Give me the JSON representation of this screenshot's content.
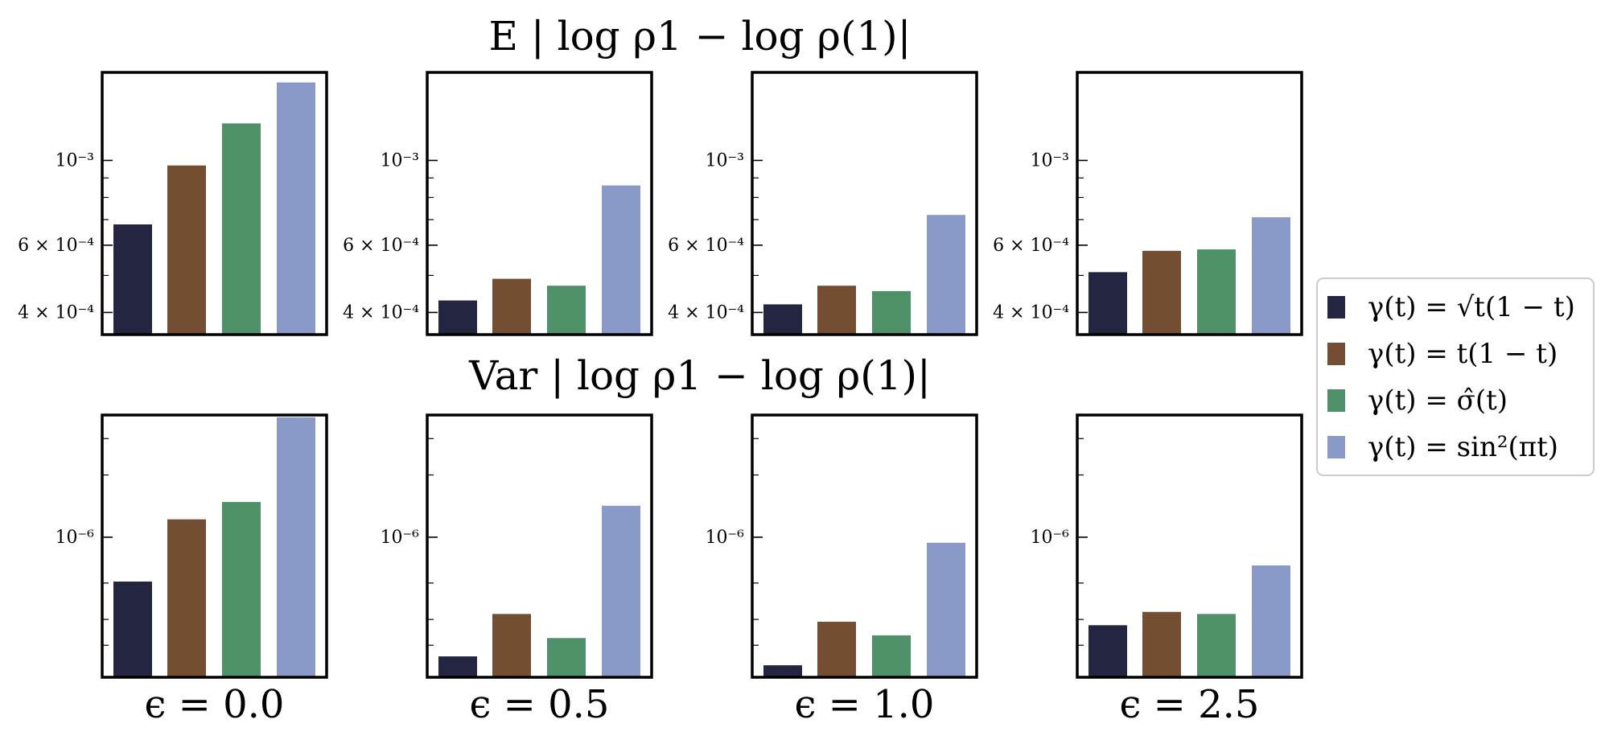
{
  "chart_data": {
    "type": "bar",
    "layout": "2x4 grid of panels, shared legend at right",
    "y_scale": "log",
    "legend_placement": "right",
    "series": [
      {
        "name": "γ(t) = √t(1 − t)",
        "color": "#232541"
      },
      {
        "name": "γ(t) = t(1 − t)",
        "color": "#744e33"
      },
      {
        "name": "γ(t) = σ̂(t)",
        "color": "#4e9168"
      },
      {
        "name": "γ(t) = sin²(πt)",
        "color": "#899ac8"
      }
    ],
    "columns": [
      {
        "label": "ϵ = 0.0"
      },
      {
        "label": "ϵ = 0.5"
      },
      {
        "label": "ϵ = 1.0"
      },
      {
        "label": "ϵ = 2.5"
      }
    ],
    "rows": [
      {
        "title": "E | log ρ1 − log ρ(1)|",
        "ylim": [
          0.00035,
          0.0017
        ],
        "tick_labels": [
          "10⁻³",
          "6 × 10⁻⁴",
          "4 × 10⁻⁴"
        ],
        "major_ticks": [
          0.001,
          0.0006,
          0.0004
        ],
        "minor_ticks": [
          0.0005,
          0.0007,
          0.0008,
          0.0009
        ],
        "panels": [
          {
            "values": [
              0.00068,
              0.00097,
              0.00125,
              0.0016
            ]
          },
          {
            "values": [
              0.00043,
              0.00049,
              0.00047,
              0.00086
            ]
          },
          {
            "values": [
              0.00042,
              0.00047,
              0.000455,
              0.00072
            ]
          },
          {
            "values": [
              0.00051,
              0.00058,
              0.000585,
              0.00071
            ]
          }
        ]
      },
      {
        "title": "Var | log ρ1 − log ρ(1)|",
        "ylim": [
          2.1e-07,
          3.9e-06
        ],
        "tick_labels": [
          "10⁻⁶"
        ],
        "major_ticks": [
          1e-06
        ],
        "minor_ticks": [
          3e-07,
          4e-07,
          6e-07,
          2e-06,
          3e-06
        ],
        "panels": [
          {
            "values": [
              6.1e-07,
              1.22e-06,
              1.48e-06,
              3.8e-06
            ]
          },
          {
            "values": [
              2.65e-07,
              4.25e-07,
              3.25e-07,
              1.42e-06
            ]
          },
          {
            "values": [
              2.4e-07,
              3.9e-07,
              3.35e-07,
              9.4e-07
            ]
          },
          {
            "values": [
              3.75e-07,
              4.35e-07,
              4.25e-07,
              7.3e-07
            ]
          }
        ]
      }
    ]
  }
}
